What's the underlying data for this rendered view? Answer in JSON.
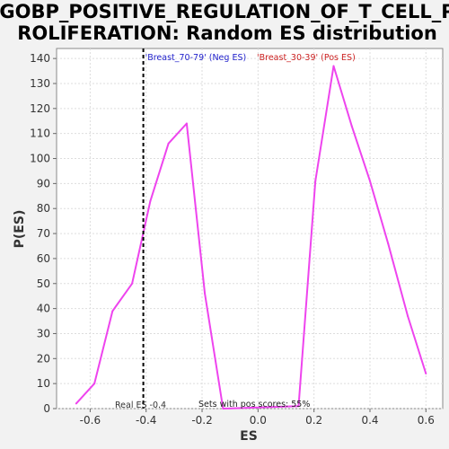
{
  "chart_data": {
    "type": "line",
    "title_lines": [
      "GOBP_POSITIVE_REGULATION_OF_T_CELL_P",
      "ROLIFERATION: Random ES distribution"
    ],
    "xlabel": "ES",
    "ylabel": "P(ES)",
    "xlim": [
      -0.72,
      0.66
    ],
    "ylim": [
      0,
      144
    ],
    "xticks": [
      -0.6,
      -0.4,
      -0.2,
      0.0,
      0.2,
      0.4,
      0.6
    ],
    "xtick_labels": [
      "-0.6",
      "-0.4",
      "-0.2",
      "0.0",
      "0.2",
      "0.4",
      "0.6"
    ],
    "yticks": [
      0,
      10,
      20,
      30,
      40,
      50,
      60,
      70,
      80,
      90,
      100,
      110,
      120,
      130,
      140
    ],
    "ytick_labels": [
      "0",
      "10",
      "20",
      "30",
      "40",
      "50",
      "60",
      "70",
      "80",
      "90",
      "100",
      "110",
      "120",
      "130",
      "140"
    ],
    "grid": true,
    "series": [
      {
        "color": "#ee44ee",
        "x": [
          -0.65,
          -0.585,
          -0.52,
          -0.45,
          -0.385,
          -0.32,
          -0.255,
          -0.19,
          -0.125,
          0.145,
          0.205,
          0.27,
          0.335,
          0.4,
          0.465,
          0.535,
          0.6
        ],
        "y": [
          2,
          10,
          39,
          50,
          83,
          106,
          114,
          46,
          0,
          1,
          91,
          137,
          113,
          91,
          66,
          37,
          14
        ]
      }
    ],
    "real_es": {
      "value": -0.41,
      "label": "Real ES -0.4",
      "color": "#000000"
    },
    "annotations": [
      {
        "id": "neg",
        "text": "'Breast_70-79' (Neg ES)",
        "color": "#2222cc"
      },
      {
        "id": "pos",
        "text": "'Breast_30-39' (Pos ES)",
        "color": "#cc2222"
      },
      {
        "id": "pct",
        "text": "Sets with pos scores: 55%",
        "color": "#222222"
      }
    ]
  }
}
